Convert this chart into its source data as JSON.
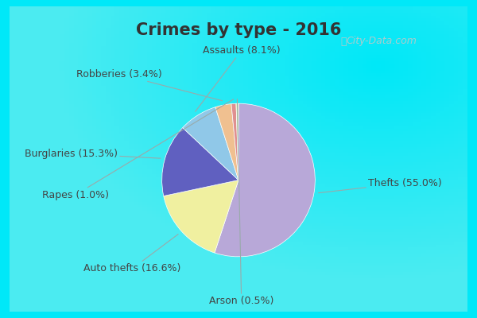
{
  "title": "Crimes by type - 2016",
  "labels": [
    "Thefts",
    "Auto thefts",
    "Burglaries",
    "Assaults",
    "Robberies",
    "Rapes",
    "Arson"
  ],
  "values": [
    55.0,
    16.6,
    15.3,
    8.1,
    3.4,
    1.0,
    0.5
  ],
  "colors": [
    "#b8a8d8",
    "#f0f0a0",
    "#6060c0",
    "#90c8e8",
    "#f0c090",
    "#e09090",
    "#d8e8a0"
  ],
  "label_format": [
    "Thefts (55.0%)",
    "Auto thefts (16.6%)",
    "Burglaries (15.3%)",
    "Assaults (8.1%)",
    "Robberies (3.4%)",
    "Rapes (1.0%)",
    "Arson (0.5%)"
  ],
  "bg_outer": "#00e8f8",
  "bg_inner": "#e8f5ee",
  "title_fontsize": 15,
  "label_fontsize": 9,
  "title_color": "#333333",
  "label_color": "#444444",
  "watermark": "City-Data.com",
  "watermark_color": "#aacccc"
}
